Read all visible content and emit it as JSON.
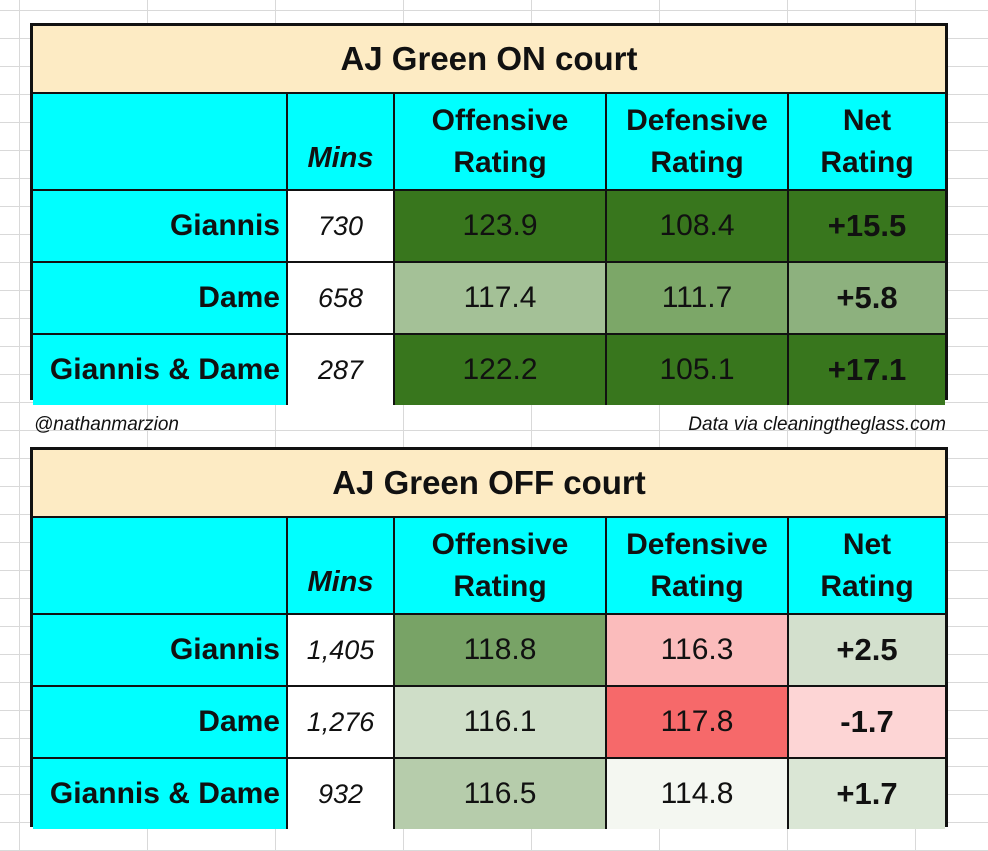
{
  "colors": {
    "header_cyan": "#00ffff",
    "title_bg": "#fdebc4",
    "green_dark": "#38761d",
    "green_mid": "#6aa84f",
    "red": "#ea4335"
  },
  "header": {
    "mins": "Mins",
    "offensive_line1": "Offensive",
    "offensive_line2": "Rating",
    "defensive_line1": "Defensive",
    "defensive_line2": "Rating",
    "net_line1": "Net",
    "net_line2": "Rating"
  },
  "on_court": {
    "title": "AJ Green ON court",
    "rows": [
      {
        "label": "Giannis",
        "mins": "730",
        "offensive": "123.9",
        "defensive": "108.4",
        "net": "+15.5",
        "bg": [
          "#38761d",
          "#38761d",
          "#38761d"
        ]
      },
      {
        "label": "Dame",
        "mins": "658",
        "offensive": "117.4",
        "defensive": "111.7",
        "net": "+5.8",
        "bg": [
          "#a4c197",
          "#7ca768",
          "#8db17e"
        ]
      },
      {
        "label": "Giannis & Dame",
        "mins": "287",
        "offensive": "122.2",
        "defensive": "105.1",
        "net": "+17.1",
        "bg": [
          "#38761d",
          "#38761d",
          "#38761d"
        ]
      }
    ]
  },
  "credits": {
    "author": "@nathanmarzion",
    "source": "Data via cleaningtheglass.com"
  },
  "off_court": {
    "title": "AJ Green OFF court",
    "rows": [
      {
        "label": "Giannis",
        "mins": "1,405",
        "offensive": "118.8",
        "defensive": "116.3",
        "net": "+2.5",
        "bg": [
          "#78a366",
          "#fbbcbc",
          "#d3e0cd"
        ]
      },
      {
        "label": "Dame",
        "mins": "1,276",
        "offensive": "116.1",
        "defensive": "117.8",
        "net": "-1.7",
        "bg": [
          "#cfdec8",
          "#f6696a",
          "#fdd5d5"
        ]
      },
      {
        "label": "Giannis & Dame",
        "mins": "932",
        "offensive": "116.5",
        "defensive": "114.8",
        "net": "+1.7",
        "bg": [
          "#b6ccab",
          "#f4f7f1",
          "#dae6d5"
        ]
      }
    ]
  }
}
